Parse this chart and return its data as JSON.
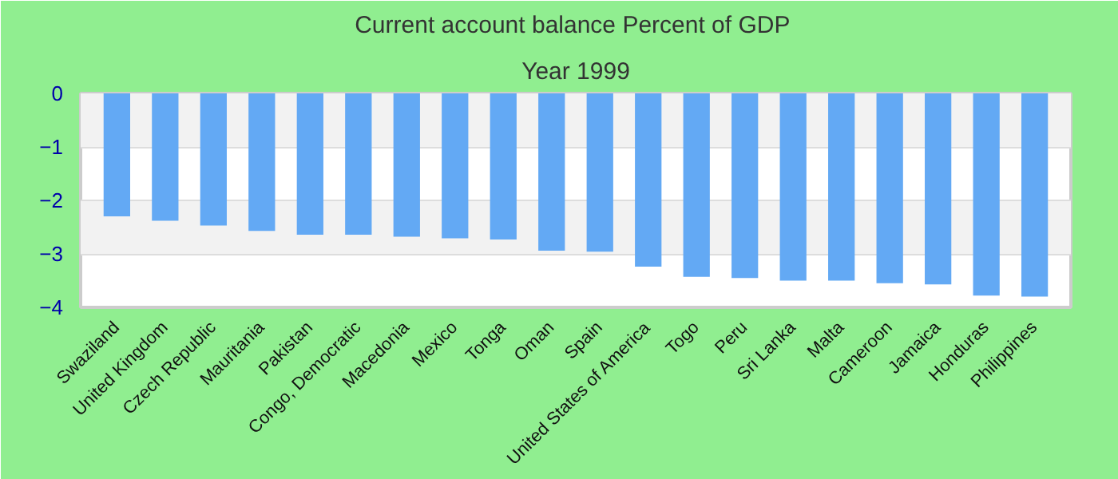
{
  "chart_data": {
    "type": "bar",
    "title": "Current account balance  Percent of GDP",
    "subtitle": "Year 1999",
    "categories": [
      "Swaziland",
      "United Kingdom",
      "Czech Republic",
      "Mauritania",
      "Pakistan",
      "Congo, Democratic",
      "Macedonia",
      "Mexico",
      "Tonga",
      "Oman",
      "Spain",
      "United States of America",
      "Togo",
      "Peru",
      "Sri Lanka",
      "Malta",
      "Cameroon",
      "Jamaica",
      "Honduras",
      "Philippines"
    ],
    "values": [
      -2.3,
      -2.38,
      -2.47,
      -2.57,
      -2.64,
      -2.64,
      -2.68,
      -2.71,
      -2.73,
      -2.94,
      -2.96,
      -3.24,
      -3.43,
      -3.45,
      -3.5,
      -3.5,
      -3.55,
      -3.57,
      -3.78,
      -3.8
    ],
    "color": "#63a9f4",
    "ylim": [
      -4,
      0
    ],
    "yticks": [
      -4,
      -3,
      -2,
      -1,
      0
    ],
    "grid": "y"
  }
}
